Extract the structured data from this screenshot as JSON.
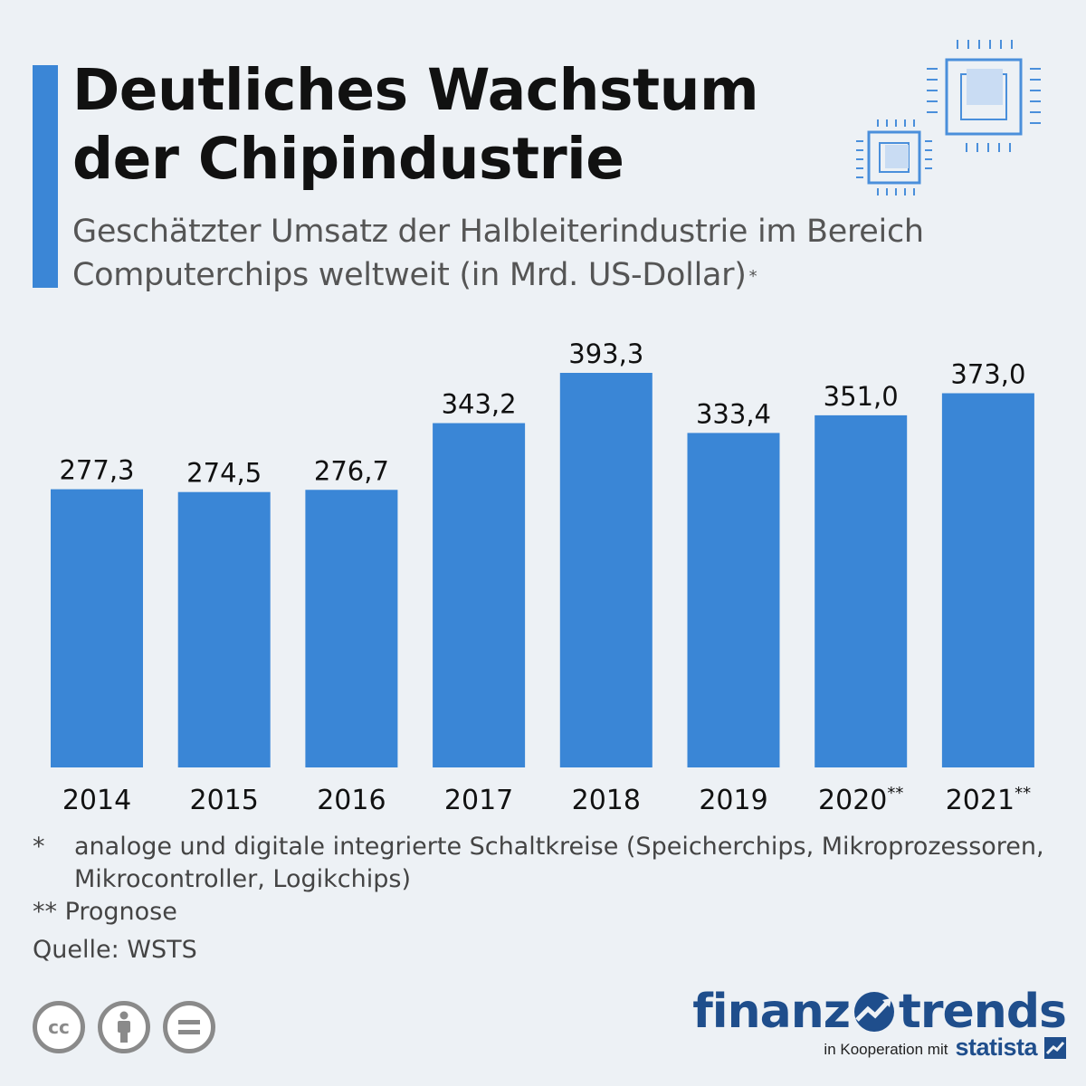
{
  "header": {
    "title_line1": "Deutliches Wachstum",
    "title_line2": "der Chipindustrie",
    "subtitle_line1": "Geschätzter Umsatz der Halbleiterindustrie im Bereich",
    "subtitle_line2": "Computerchips weltweit (in Mrd. US-Dollar)",
    "subtitle_mark": "*"
  },
  "colors": {
    "accent": "#3b86d6",
    "bar": "#3a86d6",
    "background": "#edf1f5",
    "brand": "#1f4e8c"
  },
  "chart_data": {
    "type": "bar",
    "categories": [
      "2014",
      "2015",
      "2016",
      "2017",
      "2018",
      "2019",
      "2020",
      "2021"
    ],
    "category_marks": [
      "",
      "",
      "",
      "",
      "",
      "",
      "**",
      "**"
    ],
    "values": [
      277.3,
      274.5,
      276.7,
      343.2,
      393.3,
      333.4,
      351.0,
      373.0
    ],
    "value_labels": [
      "277,3",
      "274,5",
      "276,7",
      "343,2",
      "393,3",
      "333,4",
      "351,0",
      "373,0"
    ],
    "title": "Deutliches Wachstum der Chipindustrie",
    "ylabel": "",
    "xlabel": "",
    "ylim": [
      0,
      393.3
    ],
    "grid": false,
    "legend": "none"
  },
  "footnotes": {
    "note1_mark": "*",
    "note1_text": "analoge und digitale integrierte Schaltkreise (Speicherchips, Mikroprozessoren, Mikrocontroller, Logikchips)",
    "note2_text": "** Prognose",
    "source": "Quelle: WSTS"
  },
  "license_icons": [
    "creative-commons-icon",
    "attribution-person-icon",
    "no-derivatives-equals-icon"
  ],
  "brand": {
    "word1": "finanz",
    "word2": "trends",
    "cooperation": "in Kooperation mit",
    "partner": "statista"
  }
}
